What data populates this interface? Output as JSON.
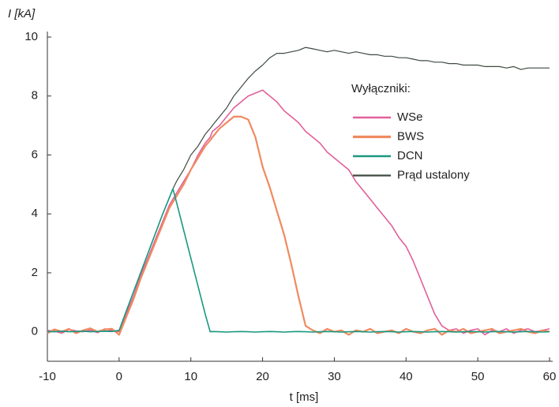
{
  "chart_data": {
    "type": "line",
    "y_label": "I [kA]",
    "x_label": "t [ms]",
    "legend_title": "Wyłączniki:",
    "x": [
      -10,
      -9,
      -8,
      -7,
      -6,
      -5,
      -4,
      -3,
      -2,
      -1,
      0,
      1,
      2,
      3,
      4,
      5,
      6,
      7,
      7.5,
      8,
      9,
      10,
      11,
      12,
      12.7,
      13,
      14,
      15,
      16,
      17,
      18,
      19,
      20,
      21,
      22,
      23,
      24,
      25,
      26,
      27,
      28,
      29,
      30,
      31,
      32,
      33,
      34,
      35,
      36,
      37,
      38,
      39,
      40,
      41,
      42,
      43,
      44,
      45,
      46,
      47,
      48,
      49,
      50,
      51,
      52,
      53,
      54,
      55,
      56,
      57,
      58,
      59,
      60
    ],
    "xlim": [
      -10,
      60
    ],
    "xticks": [
      -10,
      0,
      10,
      20,
      30,
      40,
      50,
      60
    ],
    "ylim": [
      -1,
      10
    ],
    "yticks": [
      0,
      2,
      4,
      6,
      8,
      10
    ],
    "draw_order": [
      3,
      0,
      1,
      2
    ],
    "series": [
      {
        "name": "WSe",
        "color": "#e2609a",
        "width": 1.6,
        "values": [
          0.05,
          0.02,
          -0.05,
          0.08,
          0.03,
          0,
          0.06,
          -0.03,
          0.1,
          0.05,
          0,
          0.6,
          1.2,
          1.9,
          2.5,
          3.1,
          3.7,
          4.3,
          4.5,
          4.7,
          5.1,
          5.5,
          6.0,
          6.4,
          6.6,
          6.8,
          7.0,
          7.3,
          7.6,
          7.8,
          8.0,
          8.1,
          8.2,
          8.0,
          7.8,
          7.5,
          7.3,
          7.1,
          6.8,
          6.6,
          6.4,
          6.1,
          5.9,
          5.7,
          5.5,
          5.1,
          4.8,
          4.5,
          4.2,
          3.9,
          3.6,
          3.2,
          2.9,
          2.4,
          1.8,
          1.2,
          0.6,
          0.2,
          0.05,
          0.1,
          -0.05,
          0.05,
          0.1,
          -0.1,
          0.05,
          0,
          0.1,
          -0.05,
          0.05,
          0.1,
          0,
          0.05,
          0.1
        ]
      },
      {
        "name": "BWS",
        "color": "#f08a60",
        "width": 2.2,
        "values": [
          -0.05,
          0.08,
          0,
          0.1,
          -0.05,
          0.05,
          0.12,
          0,
          0.08,
          0.1,
          -0.1,
          0.5,
          1.1,
          1.8,
          2.4,
          3.0,
          3.6,
          4.2,
          4.4,
          4.6,
          5.0,
          5.5,
          5.9,
          6.3,
          6.5,
          6.6,
          6.9,
          7.1,
          7.3,
          7.3,
          7.2,
          6.6,
          5.6,
          4.9,
          4.1,
          3.3,
          2.3,
          1.2,
          0.2,
          0.05,
          -0.05,
          0.1,
          0,
          0.05,
          -0.1,
          0.05,
          0,
          0.1,
          -0.05,
          0,
          0.05,
          -0.05,
          0.1,
          0,
          -0.05,
          0.05,
          0.1,
          -0.1,
          0.05,
          0,
          0.1,
          -0.05,
          0,
          0.05,
          0.1,
          -0.05,
          0,
          0.05,
          0.1,
          0,
          -0.05,
          0.05,
          0
        ]
      },
      {
        "name": "DCN",
        "color": "#1a9880",
        "width": 1.6,
        "values": [
          0.01,
          0,
          0.02,
          0,
          0.01,
          0.02,
          0,
          0.01,
          0.02,
          0.01,
          0.05,
          0.7,
          1.35,
          2.0,
          2.65,
          3.3,
          3.95,
          4.55,
          4.85,
          4.4,
          3.45,
          2.5,
          1.55,
          0.6,
          0,
          0.01,
          0,
          -0.01,
          0,
          0.01,
          0,
          -0.01,
          0,
          0.01,
          0,
          -0.01,
          0,
          0.01,
          0,
          -0.01,
          0,
          0.01,
          0,
          -0.01,
          0,
          0.01,
          0,
          -0.01,
          0,
          0.01,
          0,
          -0.01,
          0,
          0.01,
          0,
          -0.01,
          0,
          0.01,
          0,
          -0.01,
          0,
          0.01,
          0,
          -0.01,
          0,
          0.01,
          0,
          -0.01,
          0,
          0.01,
          0,
          -0.01,
          0
        ]
      },
      {
        "name": "Prąd ustalony",
        "color": "#3e4a40",
        "width": 1.2,
        "values": [
          0.02,
          0,
          0.03,
          0.01,
          0,
          0.02,
          0.01,
          0,
          0.03,
          0.02,
          0.05,
          0.7,
          1.35,
          2.0,
          2.65,
          3.3,
          3.95,
          4.55,
          4.85,
          5.1,
          5.5,
          6.0,
          6.3,
          6.7,
          6.9,
          7.0,
          7.3,
          7.6,
          8.0,
          8.3,
          8.6,
          8.85,
          9.05,
          9.3,
          9.45,
          9.45,
          9.5,
          9.55,
          9.65,
          9.6,
          9.55,
          9.5,
          9.55,
          9.5,
          9.45,
          9.5,
          9.45,
          9.4,
          9.4,
          9.35,
          9.35,
          9.3,
          9.3,
          9.25,
          9.2,
          9.2,
          9.15,
          9.15,
          9.1,
          9.1,
          9.05,
          9.05,
          9.05,
          9.0,
          9.0,
          9.0,
          8.95,
          9.0,
          8.9,
          8.95,
          8.95,
          8.95,
          8.95
        ]
      }
    ]
  }
}
